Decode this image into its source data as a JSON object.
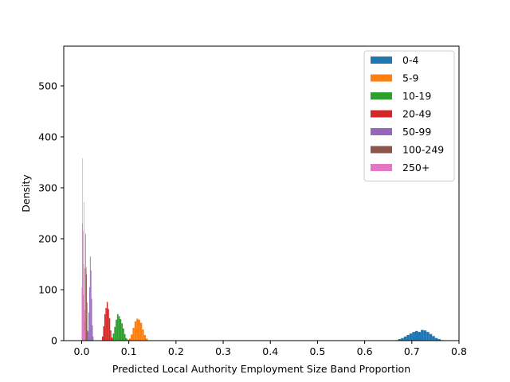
{
  "chart_data": {
    "type": "histogram",
    "title": "",
    "xlabel": "Predicted Local Authority Employment Size Band Proportion",
    "ylabel": "Density",
    "xlim": [
      -0.038,
      0.8
    ],
    "ylim": [
      0,
      578
    ],
    "x_ticks": [
      0.0,
      0.1,
      0.2,
      0.3,
      0.4,
      0.5,
      0.6,
      0.7,
      0.8
    ],
    "x_tick_labels": [
      "0.0",
      "0.1",
      "0.2",
      "0.3",
      "0.4",
      "0.5",
      "0.6",
      "0.7",
      "0.8"
    ],
    "y_ticks": [
      0,
      100,
      200,
      300,
      400,
      500
    ],
    "y_tick_labels": [
      "0",
      "100",
      "200",
      "300",
      "400",
      "500"
    ],
    "grid": false,
    "legend_position": "top-right",
    "series": [
      {
        "name": "0-4",
        "color": "#1f77b4",
        "bins": [
          [
            0.665,
            0.671,
            1
          ],
          [
            0.671,
            0.677,
            3
          ],
          [
            0.677,
            0.683,
            5
          ],
          [
            0.683,
            0.689,
            8
          ],
          [
            0.689,
            0.695,
            11
          ],
          [
            0.695,
            0.701,
            14
          ],
          [
            0.701,
            0.707,
            17
          ],
          [
            0.707,
            0.713,
            19
          ],
          [
            0.713,
            0.719,
            17
          ],
          [
            0.719,
            0.725,
            21
          ],
          [
            0.725,
            0.731,
            20
          ],
          [
            0.731,
            0.737,
            17
          ],
          [
            0.737,
            0.743,
            13
          ],
          [
            0.743,
            0.749,
            9
          ],
          [
            0.749,
            0.755,
            5
          ],
          [
            0.755,
            0.761,
            3
          ],
          [
            0.761,
            0.767,
            1
          ]
        ]
      },
      {
        "name": "5-9",
        "color": "#ff7f0e",
        "bins": [
          [
            0.1,
            0.104,
            4
          ],
          [
            0.104,
            0.108,
            12
          ],
          [
            0.108,
            0.112,
            25
          ],
          [
            0.112,
            0.116,
            38
          ],
          [
            0.116,
            0.12,
            43
          ],
          [
            0.12,
            0.124,
            41
          ],
          [
            0.124,
            0.128,
            35
          ],
          [
            0.128,
            0.132,
            22
          ],
          [
            0.132,
            0.136,
            11
          ],
          [
            0.136,
            0.14,
            4
          ]
        ]
      },
      {
        "name": "10-19",
        "color": "#2ca02c",
        "bins": [
          [
            0.063,
            0.066,
            5
          ],
          [
            0.066,
            0.069,
            14
          ],
          [
            0.069,
            0.072,
            27
          ],
          [
            0.072,
            0.075,
            41
          ],
          [
            0.075,
            0.078,
            52
          ],
          [
            0.078,
            0.081,
            48
          ],
          [
            0.081,
            0.084,
            42
          ],
          [
            0.084,
            0.087,
            34
          ],
          [
            0.087,
            0.09,
            24
          ],
          [
            0.09,
            0.093,
            13
          ],
          [
            0.093,
            0.096,
            5
          ],
          [
            0.096,
            0.099,
            2
          ]
        ]
      },
      {
        "name": "20-49",
        "color": "#d62728",
        "bins": [
          [
            0.043,
            0.0455,
            8
          ],
          [
            0.0455,
            0.048,
            28
          ],
          [
            0.048,
            0.0505,
            52
          ],
          [
            0.0505,
            0.053,
            64
          ],
          [
            0.053,
            0.0555,
            76
          ],
          [
            0.0555,
            0.058,
            62
          ],
          [
            0.058,
            0.0605,
            44
          ],
          [
            0.0605,
            0.063,
            20
          ],
          [
            0.063,
            0.0655,
            6
          ]
        ]
      },
      {
        "name": "50-99",
        "color": "#9467bd",
        "bins": [
          [
            0.013,
            0.0145,
            18
          ],
          [
            0.0145,
            0.016,
            55
          ],
          [
            0.016,
            0.0175,
            105
          ],
          [
            0.0175,
            0.019,
            165
          ],
          [
            0.019,
            0.0205,
            138
          ],
          [
            0.0205,
            0.022,
            82
          ],
          [
            0.022,
            0.0235,
            30
          ],
          [
            0.0235,
            0.025,
            8
          ]
        ]
      },
      {
        "name": "100-249",
        "color": "#8c564b",
        "bins": [
          [
            0.006,
            0.007,
            40
          ],
          [
            0.007,
            0.008,
            142
          ],
          [
            0.008,
            0.009,
            210
          ],
          [
            0.009,
            0.01,
            145
          ],
          [
            0.01,
            0.011,
            130
          ],
          [
            0.011,
            0.012,
            75
          ],
          [
            0.012,
            0.013,
            20
          ]
        ]
      },
      {
        "name": "250+",
        "color": "#e377c2",
        "bins": [
          [
            0.0,
            0.0008,
            105
          ],
          [
            0.0008,
            0.0016,
            230
          ],
          [
            0.0016,
            0.0024,
            358
          ],
          [
            0.0024,
            0.0032,
            215
          ],
          [
            0.0032,
            0.004,
            90
          ],
          [
            0.004,
            0.0048,
            150
          ],
          [
            0.0048,
            0.0056,
            272
          ],
          [
            0.0056,
            0.0064,
            60
          ],
          [
            0.0064,
            0.0072,
            20
          ]
        ]
      }
    ]
  }
}
